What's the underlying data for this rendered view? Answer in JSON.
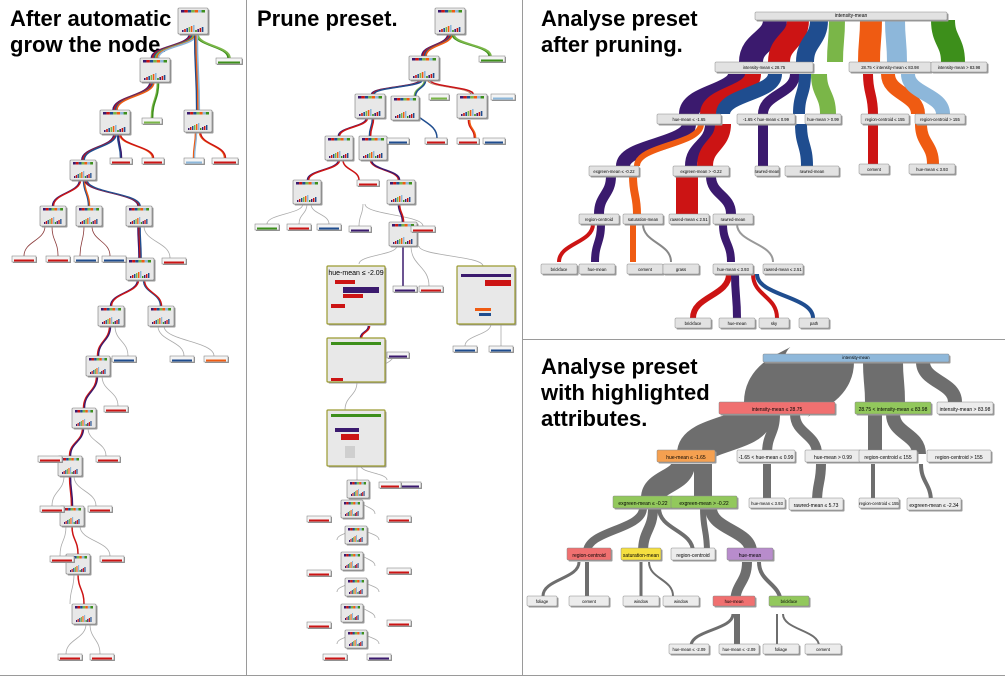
{
  "panels": {
    "auto_grow": {
      "title": "After automatic grow the node."
    },
    "prune": {
      "title": "Prune preset.",
      "zoomed_labels": [
        "hue-mean ≤ -2.09"
      ]
    },
    "analyse_pruned": {
      "title": "Analyse preset after pruning.",
      "node_labels": [
        "intensity-mean",
        "intensity-mean ≤ 28.75",
        "28.75 < intensity-mean ≤ 83.98",
        "intensity-mean > 83.98",
        "hue-mean ≤ -1.65",
        "-1.65 < hue-mean ≤ 0.99",
        "hue-mean > 0.99",
        "region-centroid ≤ 155",
        "region-centroid > 155",
        "exgreen-mean ≤ -0.22",
        "exgreen-mean > -0.22",
        "rawred-mean",
        "region-centroid",
        "saturation-mean",
        "hue-mean ≤ 3.93",
        "foliage",
        "hue-mean",
        "rawred-mean ≤ 2.51",
        "window",
        "cement",
        "brickface",
        "sky",
        "grass",
        "path"
      ]
    },
    "analyse_highlight": {
      "title": "Analyse preset with highlighted attributes.",
      "node_labels": [
        "intensity-mean",
        "intensity-mean ≤ 28.75",
        "28.75 < intensity-mean ≤ 83.98",
        "intensity-mean > 83.98",
        "hue-mean ≤ -1.65",
        "-1.65 < hue-mean ≤ 0.99",
        "hue-mean > 0.99",
        "region-centroid ≤ 155",
        "region-centroid > 155",
        "exgreen-mean ≤ -0.22",
        "exgreen-mean > -0.22",
        "hue-mean ≤ -2.09",
        "rawred-mean ≤ 5.73",
        "exgreen-mean ≤ -2.34",
        "region-centroid",
        "saturation-mean",
        "hue-mean ≤ 3.93",
        "foliage",
        "cement",
        "window",
        "brickface",
        "hue-mean"
      ]
    }
  },
  "class_colors": {
    "a": "#3b1a6e",
    "b": "#cc1414",
    "c": "#1f4d8f",
    "d": "#7ab648",
    "e": "#ef5b12",
    "f": "#8db7da",
    "g": "#3d8f1b"
  },
  "highlight_colors": {
    "root": "#8fb8da",
    "red": "#f07070",
    "orange": "#f5a050",
    "green": "#92c85c",
    "yellow": "#f5e040",
    "violet": "#b88ccc",
    "gray": "#6e6e6e"
  }
}
